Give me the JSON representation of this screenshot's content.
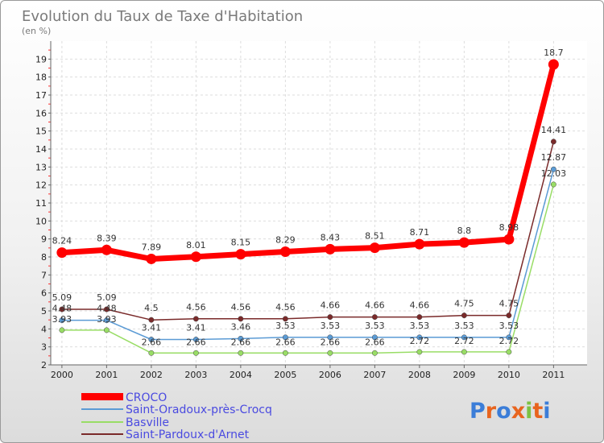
{
  "chart_data": {
    "type": "line",
    "title": "Evolution du Taux de Taxe d'Habitation",
    "subtitle": "(en %)",
    "x": [
      "2000",
      "2001",
      "2002",
      "2003",
      "2004",
      "2005",
      "2006",
      "2007",
      "2008",
      "2009",
      "2010",
      "2011"
    ],
    "yticks": [
      2,
      3,
      4,
      5,
      6,
      7,
      8,
      9,
      10,
      11,
      12,
      13,
      14,
      15,
      16,
      17,
      18,
      19
    ],
    "ylim": [
      2,
      20
    ],
    "grid": true,
    "legend_position": "bottom-left",
    "series": [
      {
        "name": "CROCO",
        "color": "#ff0000",
        "values": [
          8.24,
          8.39,
          7.89,
          8.01,
          8.15,
          8.29,
          8.43,
          8.51,
          8.71,
          8.8,
          8.98,
          18.7
        ],
        "labels": [
          "8.24",
          "8.39",
          "7.89",
          "8.01",
          "8.15",
          "8.29",
          "8.43",
          "8.51",
          "8.71",
          "8.8",
          "8.98",
          "18.7"
        ]
      },
      {
        "name": "Saint-Oradoux-près-Crocq",
        "color": "#5b9bd5",
        "values": [
          4.48,
          4.48,
          3.41,
          3.41,
          3.46,
          3.53,
          3.53,
          3.53,
          3.53,
          3.53,
          3.53,
          12.87
        ],
        "labels": [
          "4.48",
          "4.48",
          "3.41",
          "3.41",
          "3.46",
          "3.53",
          "3.53",
          "3.53",
          "3.53",
          "3.53",
          "3.53",
          "12.87"
        ]
      },
      {
        "name": "Basville",
        "color": "#99dd66",
        "values": [
          3.93,
          3.93,
          2.66,
          2.66,
          2.66,
          2.66,
          2.66,
          2.66,
          2.72,
          2.72,
          2.72,
          12.03
        ],
        "labels": [
          "3.93",
          "3.93",
          "2.66",
          "2.66",
          "2.66",
          "2.66",
          "2.66",
          "2.66",
          "2.72",
          "2.72",
          "2.72",
          "12.03"
        ]
      },
      {
        "name": "Saint-Pardoux-d'Arnet",
        "color": "#7a2a2a",
        "values": [
          5.09,
          5.09,
          4.5,
          4.56,
          4.56,
          4.56,
          4.66,
          4.66,
          4.66,
          4.75,
          4.75,
          14.41
        ],
        "labels": [
          "5.09",
          "5.09",
          "4.5",
          "4.56",
          "4.56",
          "4.56",
          "4.66",
          "4.66",
          "4.66",
          "4.75",
          "4.75",
          "14.41"
        ]
      }
    ]
  },
  "branding": {
    "logo_text": "Proxiti",
    "letters": [
      "P",
      "r",
      "o",
      "x",
      "i",
      "t",
      "i"
    ],
    "letter_colors": [
      "#3b7dd8",
      "#e8641e",
      "#3b7dd8",
      "#e8641e",
      "#7cc242",
      "#e8641e",
      "#3b7dd8"
    ]
  }
}
